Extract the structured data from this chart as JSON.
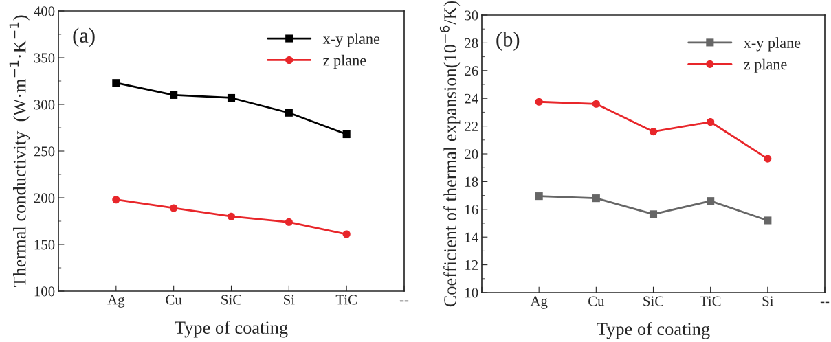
{
  "chart_data": [
    {
      "type": "line",
      "xlabel": "Type of coating",
      "ylabel": "Thermal conductivity  (W·m$^{−1}$·K$^{−1}$)",
      "annotations": [
        "(a)"
      ],
      "categories": [
        null,
        "Ag",
        "Cu",
        "SiC",
        "Si",
        "TiC",
        "--"
      ],
      "series": [
        {
          "name": "x-y plane",
          "color": "#000000",
          "marker": "square",
          "values": [
            null,
            323,
            310,
            307,
            291,
            268,
            null
          ]
        },
        {
          "name": "z plane",
          "color": "#e8262a",
          "marker": "circle",
          "values": [
            null,
            198,
            189,
            180,
            174,
            161,
            null
          ]
        }
      ],
      "ylim": [
        100,
        400
      ],
      "yticks": [
        100,
        150,
        200,
        250,
        300,
        350,
        400
      ],
      "legend": "top right",
      "grid": false,
      "line_style": "solid"
    },
    {
      "type": "line",
      "xlabel": "Type of coating",
      "ylabel": "Coefficient of thermal expansion(10$^{−6}$/K)",
      "annotations": [
        "(b)"
      ],
      "categories": [
        null,
        "Ag",
        "Cu",
        "SiC",
        "TiC",
        "Si",
        "--"
      ],
      "series": [
        {
          "name": "x-y plane",
          "color": "#666666",
          "marker": "square",
          "values": [
            null,
            16.95,
            16.8,
            15.65,
            16.6,
            15.2,
            null
          ]
        },
        {
          "name": "z plane",
          "color": "#e8262a",
          "marker": "circle",
          "values": [
            null,
            23.75,
            23.6,
            21.6,
            22.3,
            19.65,
            null
          ]
        }
      ],
      "ylim": [
        10,
        30
      ],
      "yticks": [
        10,
        12,
        14,
        16,
        18,
        20,
        22,
        24,
        26,
        28,
        30
      ],
      "legend": "top right",
      "grid": false,
      "line_style": "solid"
    }
  ]
}
